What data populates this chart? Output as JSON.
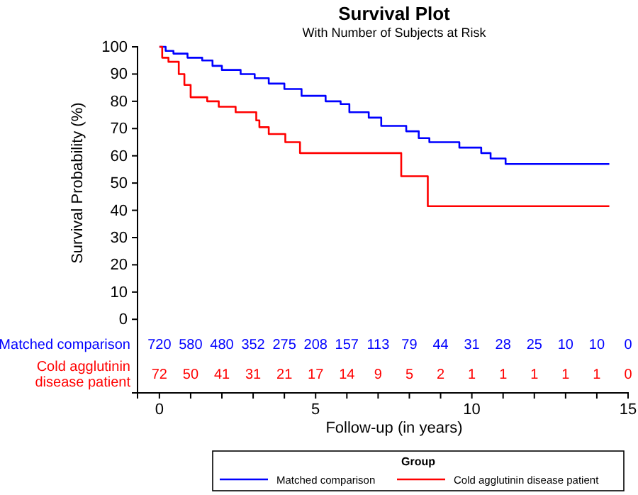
{
  "chart_data": {
    "type": "step",
    "title": "Survival Plot",
    "subtitle": "With Number of Subjects at Risk",
    "xlabel": "Follow-up (in years)",
    "ylabel": "Survival Probability (%)",
    "legend_title": "Group",
    "legend": "bottom",
    "xlim": [
      -0.7,
      15
    ],
    "xticks": [
      0,
      {
        "value": 1,
        "label": null
      },
      {
        "value": 2,
        "label": null
      },
      {
        "value": 3,
        "label": null
      },
      {
        "value": 4,
        "label": null
      },
      5,
      {
        "value": 6,
        "label": null
      },
      {
        "value": 7,
        "label": null
      },
      {
        "value": 8,
        "label": null
      },
      {
        "value": 9,
        "label": null
      },
      10,
      {
        "value": 11,
        "label": null
      },
      {
        "value": 12,
        "label": null
      },
      {
        "value": 13,
        "label": null
      },
      {
        "value": 14,
        "label": null
      },
      15
    ],
    "ylim": [
      -27,
      100
    ],
    "yticks": [
      0,
      10,
      20,
      30,
      40,
      50,
      60,
      70,
      80,
      90,
      100
    ],
    "series": [
      {
        "name": "Matched comparison",
        "color": "#0000ff",
        "x": [
          0,
          0.2,
          0.45,
          0.9,
          1.37,
          1.7,
          2,
          2.6,
          3.05,
          3.5,
          4,
          4.55,
          5.32,
          5.8,
          6.08,
          6.7,
          7.1,
          7.9,
          8.3,
          8.64,
          9.6,
          10.3,
          10.6,
          11.08,
          14.4
        ],
        "values": [
          100,
          98.5,
          97.5,
          96,
          95,
          93,
          91.5,
          90,
          88.5,
          86.5,
          84.5,
          82,
          80,
          79,
          76,
          74,
          71,
          69,
          66.5,
          65,
          63,
          61,
          59,
          57,
          57
        ]
      },
      {
        "name": "Cold agglutinin disease patient",
        "color": "#ff0000",
        "x": [
          0,
          0.09,
          0.29,
          0.62,
          0.8,
          1,
          1.53,
          1.9,
          2.44,
          3.1,
          3.2,
          3.5,
          4.03,
          4.5,
          7.74,
          8.59,
          14.4
        ],
        "values": [
          100,
          96,
          94.5,
          90,
          86,
          81.5,
          80,
          78,
          76,
          73,
          70.5,
          68,
          65,
          61,
          52.5,
          41.5,
          41.5
        ]
      }
    ],
    "annotations": [
      "720",
      "580",
      "480",
      "352",
      "275",
      "208",
      "157",
      "113",
      "79",
      "44",
      "31",
      "28",
      "25",
      "10",
      "10",
      "0",
      "72",
      "50",
      "41",
      "31",
      "21",
      "17",
      "14",
      "9",
      "5",
      "2",
      "1",
      "1",
      "1",
      "1",
      "1",
      "0"
    ]
  }
}
